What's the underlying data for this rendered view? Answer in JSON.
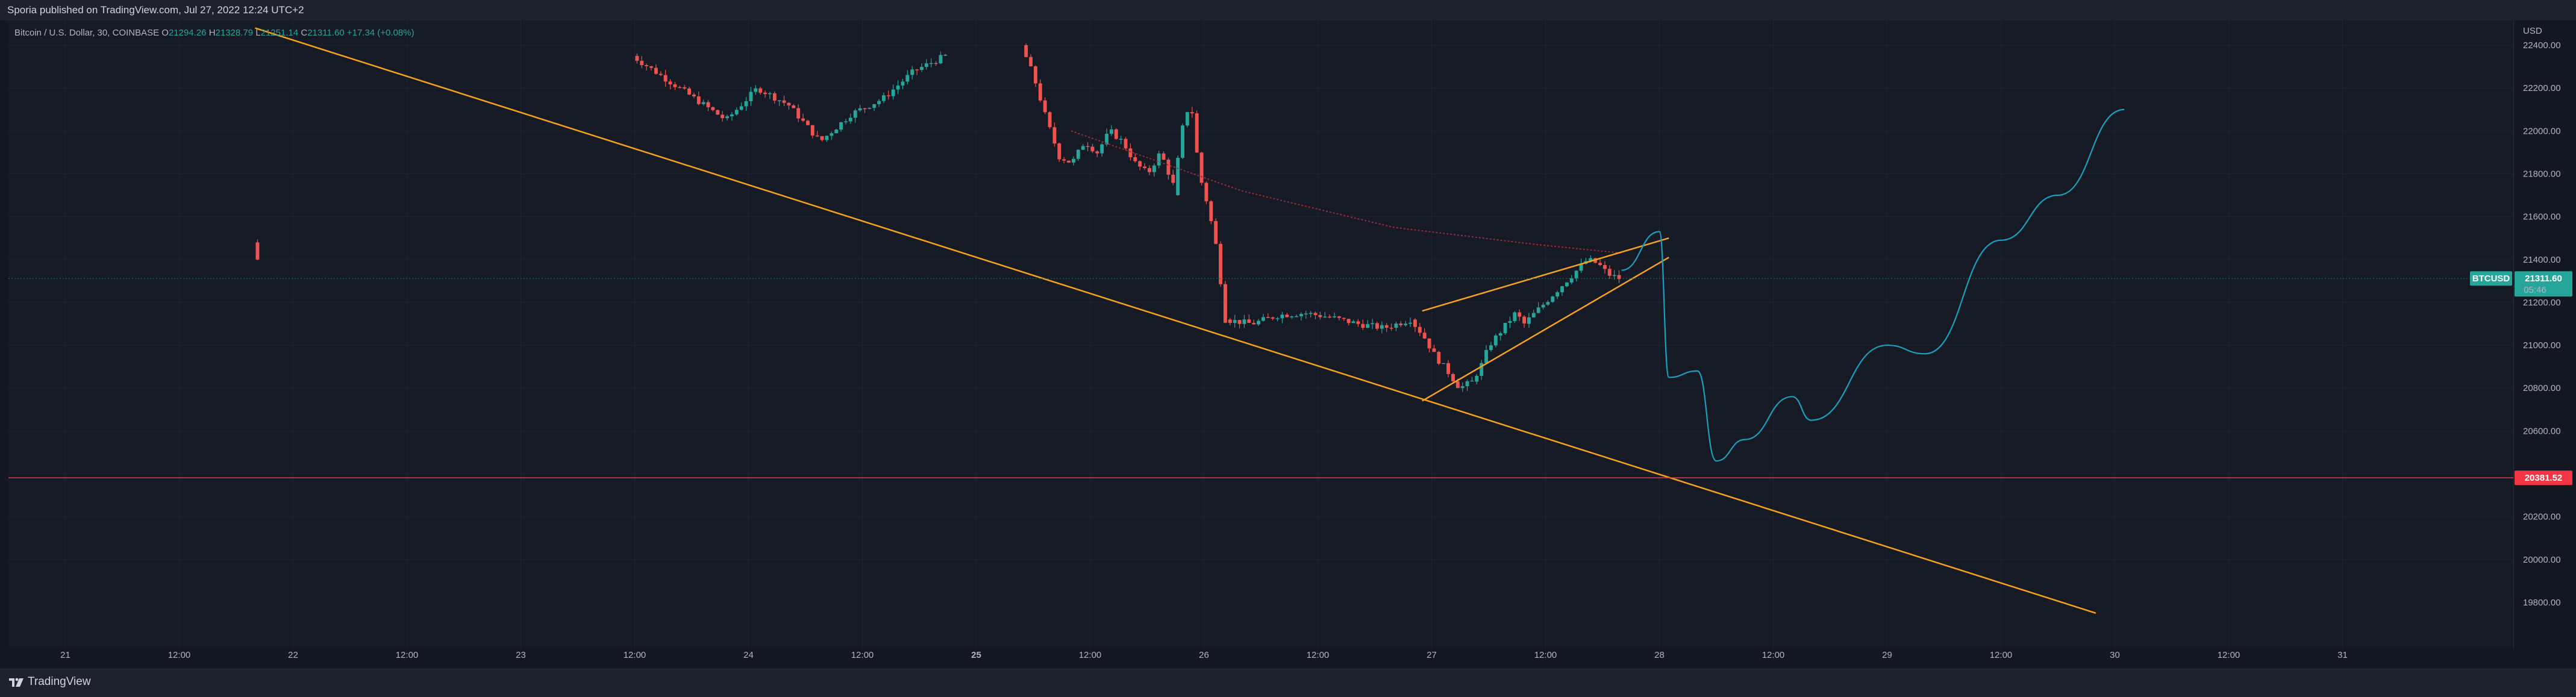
{
  "header": {
    "publisher_line": "Sporia published on TradingView.com, Jul 27, 2022 12:24 UTC+2"
  },
  "legend": {
    "symbol_description": "Bitcoin / U.S. Dollar, 30, COINBASE",
    "open_label": "O",
    "open_value": "21294.26",
    "high_label": "H",
    "high_value": "21328.79",
    "low_label": "L",
    "low_value": "21251.14",
    "close_label": "C",
    "close_value": "21311.60",
    "change": "+17.34 (+0.08%)"
  },
  "price_axis": {
    "currency": "USD",
    "ticks": [
      "22400.00",
      "22200.00",
      "22000.00",
      "21800.00",
      "21600.00",
      "21400.00",
      "21200.00",
      "21000.00",
      "20800.00",
      "20600.00",
      "20400.00",
      "20200.00",
      "20000.00",
      "19800.00"
    ],
    "symbol_tag": "BTCUSD",
    "last_price_label": "21311.60",
    "countdown": "05:46",
    "level_label": "20381.52"
  },
  "time_axis": {
    "ticks": [
      "12:00",
      "21",
      "12:00",
      "22",
      "12:00",
      "23",
      "12:00",
      "24",
      "12:00",
      "25",
      "12:00",
      "26",
      "12:00",
      "27",
      "12:00",
      "28",
      "12:00",
      "29",
      "12:00",
      "30",
      "12:00",
      "31"
    ]
  },
  "footer": {
    "brand": "TradingView"
  },
  "colors": {
    "up": "#26a69a",
    "down": "#ef5350",
    "trendline": "#f7a21b",
    "projection": "#1a9fc0",
    "horizontal_level": "#f23645",
    "moving_average": "#9c2a3a"
  },
  "chart_data": {
    "type": "candlestick",
    "timeframe": "30",
    "exchange": "COINBASE",
    "symbol": "BTCUSD",
    "x_range": [
      "2022-07-20T18:00",
      "2022-07-31T18:00"
    ],
    "ylim": [
      19700,
      22500
    ],
    "grid": true,
    "last_price": 21311.6,
    "candle_segments": [
      {
        "start": "2022-07-21T20:00",
        "end": "2022-07-21T20:30",
        "path": [
          21480,
          21400
        ]
      },
      {
        "start": "2022-07-23T12:00",
        "end": "2022-07-24T21:00",
        "path": [
          22350,
          22250,
          22150,
          22050,
          22200,
          22120,
          21950,
          22080,
          22150,
          22280,
          22350
        ]
      },
      {
        "start": "2022-07-25T05:00",
        "end": "2022-07-25T21:00",
        "path": [
          22400,
          22250,
          22050,
          21880,
          21850,
          21950,
          21900,
          22000,
          21950,
          21850,
          21800,
          21900,
          21750
        ]
      },
      {
        "start": "2022-07-25T21:00",
        "end": "2022-07-26T02:30",
        "path": [
          21700,
          22000,
          22150,
          21800,
          21650,
          21450,
          21120
        ]
      },
      {
        "start": "2022-07-26T02:30",
        "end": "2022-07-26T22:00",
        "path": [
          21120,
          21100,
          21140,
          21150,
          21130,
          21100,
          21080,
          21120
        ]
      },
      {
        "start": "2022-07-26T22:00",
        "end": "2022-07-27T04:30",
        "path": [
          21120,
          21050,
          20950,
          20880,
          20800,
          20830
        ]
      },
      {
        "start": "2022-07-27T04:30",
        "end": "2022-07-27T10:00",
        "path": [
          20830,
          20900,
          21000,
          21050,
          21100,
          21150,
          21100
        ]
      },
      {
        "start": "2022-07-27T10:00",
        "end": "2022-07-27T20:00",
        "path": [
          21100,
          21150,
          21200,
          21250,
          21300,
          21350,
          21400,
          21380,
          21330,
          21311.6
        ]
      }
    ],
    "moving_average": [
      {
        "time": "2022-07-25T10:00",
        "value": 22000
      },
      {
        "time": "2022-07-26T04:00",
        "value": 21720
      },
      {
        "time": "2022-07-26T20:00",
        "value": 21550
      },
      {
        "time": "2022-07-27T11:00",
        "value": 21470
      },
      {
        "time": "2022-07-27T20:00",
        "value": 21430
      }
    ],
    "drawings": {
      "descending_trendline": {
        "start": {
          "time": "2022-07-21T20:00",
          "value": 22480
        },
        "end": {
          "time": "2022-07-29T22:00",
          "value": 19750
        }
      },
      "rising_wedge_upper": {
        "start": {
          "time": "2022-07-26T23:00",
          "value": 21160
        },
        "end": {
          "time": "2022-07-28T01:00",
          "value": 21500
        }
      },
      "rising_wedge_lower": {
        "start": {
          "time": "2022-07-26T23:00",
          "value": 20740
        },
        "end": {
          "time": "2022-07-28T01:00",
          "value": 21410
        }
      },
      "horizontal_level": 20381.52,
      "projection_path": [
        {
          "time": "2022-07-27T20:00",
          "value": 21350
        },
        {
          "time": "2022-07-28T00:00",
          "value": 21530
        },
        {
          "time": "2022-07-28T01:00",
          "value": 20850
        },
        {
          "time": "2022-07-28T04:00",
          "value": 20880
        },
        {
          "time": "2022-07-28T06:00",
          "value": 20460
        },
        {
          "time": "2022-07-28T09:00",
          "value": 20560
        },
        {
          "time": "2022-07-28T14:00",
          "value": 20760
        },
        {
          "time": "2022-07-28T16:00",
          "value": 20650
        },
        {
          "time": "2022-07-29T00:00",
          "value": 21000
        },
        {
          "time": "2022-07-29T04:00",
          "value": 20960
        },
        {
          "time": "2022-07-29T12:00",
          "value": 21490
        },
        {
          "time": "2022-07-29T18:00",
          "value": 21700
        },
        {
          "time": "2022-07-30T01:00",
          "value": 22100
        }
      ]
    }
  }
}
